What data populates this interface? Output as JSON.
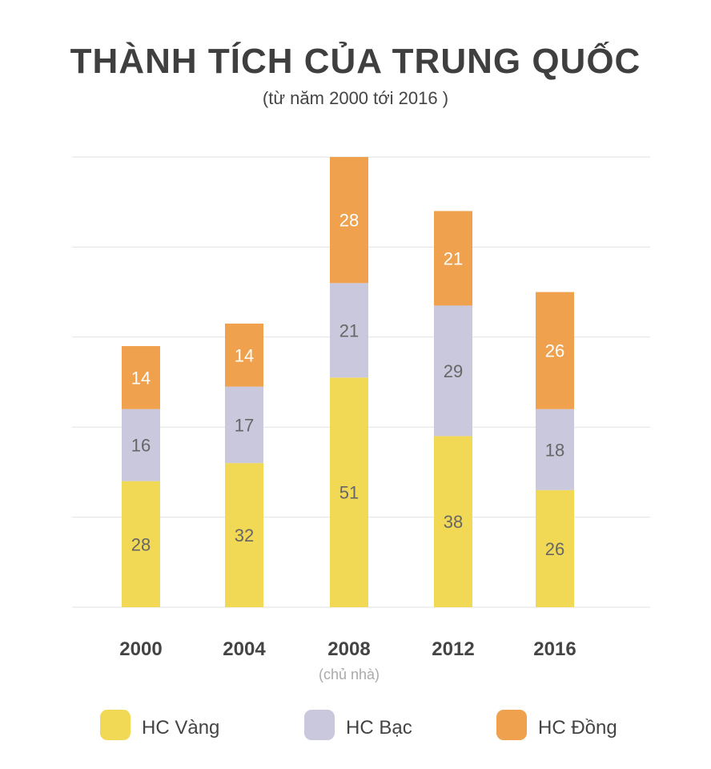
{
  "chart_data": {
    "type": "bar",
    "stacked": true,
    "title": "THÀNH TÍCH CỦA TRUNG QUỐC",
    "subtitle": "(từ năm 2000 tới 2016 )",
    "categories": [
      "2000",
      "2004",
      "2008",
      "2012",
      "2016"
    ],
    "category_notes": [
      "",
      "",
      "(chủ nhà)",
      "",
      ""
    ],
    "series": [
      {
        "name": "HC Vàng",
        "color": "#f2d955",
        "label_color": "#666666",
        "values": [
          28,
          32,
          51,
          38,
          26
        ]
      },
      {
        "name": "HC Bạc",
        "color": "#c9c8dc",
        "label_color": "#666666",
        "values": [
          16,
          17,
          21,
          29,
          18
        ]
      },
      {
        "name": "HC Đồng",
        "color": "#efa14e",
        "label_color": "#ffffff",
        "values": [
          14,
          14,
          28,
          21,
          26
        ]
      }
    ],
    "ylim": [
      0,
      100
    ],
    "grid": true,
    "grid_step": 20,
    "legend_position": "bottom",
    "xlabel": "",
    "ylabel": ""
  }
}
